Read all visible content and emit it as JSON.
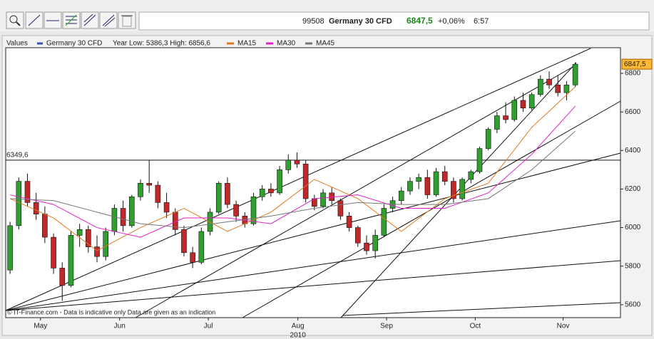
{
  "header": {
    "id": "99508",
    "instrument": "Germany 30 CFD",
    "price": "6847,5",
    "change": "+0,06%",
    "time": "6:57"
  },
  "chart_data": {
    "type": "candlestick",
    "legend_title": "Values",
    "name": "Germany 30 CFD",
    "color": "#3355aa",
    "range_note": "Year Low: 5386,3 High: 6856,6",
    "footer": "© IT-Finance.com - Data is indicative only Data are given as an indication",
    "year_label": "2010",
    "x": [
      0,
      1,
      2,
      3,
      4,
      5,
      6,
      7,
      8,
      9,
      10,
      11,
      12,
      13,
      14,
      15,
      16,
      17,
      18,
      19,
      20,
      21,
      22,
      23,
      24,
      25,
      26,
      27,
      28,
      29,
      30,
      31,
      32,
      33,
      34,
      35,
      36,
      37,
      38,
      39,
      40,
      41,
      42,
      43,
      44,
      45,
      46,
      47,
      48,
      49,
      50,
      51,
      52,
      53,
      54,
      55,
      56,
      57,
      58,
      59,
      60,
      61,
      62,
      63,
      64,
      65
    ],
    "open": [
      5780,
      6010,
      6240,
      6130,
      6070,
      5950,
      5790,
      5700,
      5960,
      5990,
      5900,
      5850,
      5980,
      6100,
      6010,
      6160,
      6230,
      6220,
      6130,
      6080,
      5990,
      5870,
      5820,
      5980,
      6080,
      6230,
      6120,
      6060,
      6020,
      6160,
      6200,
      6180,
      6300,
      6350,
      6330,
      6150,
      6110,
      6180,
      6140,
      6060,
      6000,
      5920,
      5880,
      5960,
      6100,
      6140,
      6190,
      6240,
      6260,
      6170,
      6290,
      6240,
      6150,
      6250,
      6290,
      6410,
      6510,
      6580,
      6560,
      6660,
      6620,
      6690,
      6770,
      6740,
      6700,
      6740
    ],
    "high": [
      6030,
      6260,
      6280,
      6180,
      6110,
      5970,
      5820,
      5980,
      6020,
      6010,
      5960,
      6000,
      6120,
      6140,
      6170,
      6250,
      6350,
      6240,
      6180,
      6100,
      6010,
      5900,
      6000,
      6100,
      6240,
      6260,
      6140,
      6080,
      6180,
      6220,
      6230,
      6320,
      6380,
      6390,
      6350,
      6170,
      6200,
      6210,
      6150,
      6080,
      6010,
      5960,
      5990,
      6120,
      6160,
      6210,
      6260,
      6280,
      6300,
      6310,
      6320,
      6260,
      6260,
      6300,
      6420,
      6520,
      6600,
      6650,
      6680,
      6700,
      6700,
      6790,
      6810,
      6790,
      6760,
      6857
    ],
    "low": [
      5760,
      5990,
      6110,
      6040,
      5920,
      5760,
      5620,
      5690,
      5900,
      5870,
      5820,
      5830,
      5960,
      5980,
      6000,
      6140,
      6180,
      6100,
      6050,
      5960,
      5850,
      5790,
      5810,
      5960,
      6070,
      6100,
      6030,
      6000,
      6010,
      6140,
      6160,
      6170,
      6280,
      6310,
      6130,
      6090,
      6100,
      6120,
      6040,
      5980,
      5900,
      5860,
      5840,
      5950,
      6080,
      6120,
      6170,
      6200,
      6150,
      6160,
      6220,
      6130,
      6140,
      6230,
      6280,
      6400,
      6490,
      6540,
      6550,
      6600,
      6610,
      6680,
      6720,
      6680,
      6660,
      6730
    ],
    "close": [
      6010,
      6240,
      6130,
      6070,
      5950,
      5790,
      5700,
      5960,
      5990,
      5900,
      5850,
      5980,
      6100,
      6010,
      6160,
      6230,
      6220,
      6130,
      6080,
      5990,
      5870,
      5820,
      5980,
      6080,
      6230,
      6120,
      6060,
      6020,
      6160,
      6200,
      6180,
      6300,
      6350,
      6330,
      6150,
      6110,
      6180,
      6140,
      6060,
      6000,
      5920,
      5880,
      5960,
      6100,
      6140,
      6190,
      6240,
      6260,
      6170,
      6290,
      6240,
      6150,
      6250,
      6290,
      6410,
      6510,
      6580,
      6560,
      6660,
      6620,
      6690,
      6770,
      6740,
      6700,
      6740,
      6847.5
    ],
    "up_color": "#2ea02e",
    "down_color": "#c0282a",
    "series": [
      {
        "name": "MA15",
        "color": "#e07a20",
        "x": [
          0,
          5,
          10,
          15,
          20,
          25,
          30,
          35,
          40,
          45,
          50,
          55,
          60,
          65
        ],
        "values": [
          6150,
          6050,
          5880,
          6000,
          6100,
          5980,
          6080,
          6250,
          6150,
          5980,
          6150,
          6230,
          6520,
          6730
        ]
      },
      {
        "name": "MA30",
        "color": "#e020c8",
        "x": [
          0,
          5,
          10,
          15,
          20,
          25,
          30,
          35,
          40,
          45,
          50,
          55,
          60,
          65
        ],
        "values": [
          6170,
          6120,
          6000,
          5950,
          6050,
          6050,
          6020,
          6150,
          6170,
          6100,
          6100,
          6180,
          6380,
          6630
        ]
      },
      {
        "name": "MA45",
        "color": "#777777",
        "x": [
          0,
          5,
          10,
          15,
          20,
          25,
          30,
          35,
          40,
          45,
          50,
          55,
          60,
          65
        ],
        "values": [
          6150,
          6140,
          6080,
          6020,
          6000,
          6030,
          6060,
          6100,
          6130,
          6120,
          6120,
          6150,
          6300,
          6500
        ]
      }
    ],
    "hline": {
      "value": 6349.6,
      "label": "6349,6"
    },
    "last_price": {
      "value": 6847.5,
      "label": "6847,5"
    },
    "xlim": [
      -0.5,
      70.2
    ],
    "xticks": [
      {
        "value": 3.5,
        "label": "May"
      },
      {
        "value": 12.6,
        "label": "Jun"
      },
      {
        "value": 22.8,
        "label": "Jul"
      },
      {
        "value": 33.1,
        "label": "Aug"
      },
      {
        "value": 43.3,
        "label": "Sep"
      },
      {
        "value": 53.5,
        "label": "Oct"
      },
      {
        "value": 63.6,
        "label": "Nov"
      }
    ],
    "ylim": [
      5533,
      6933
    ],
    "yticks": [
      5600,
      5800,
      6000,
      6200,
      6400,
      6600,
      6800
    ]
  }
}
